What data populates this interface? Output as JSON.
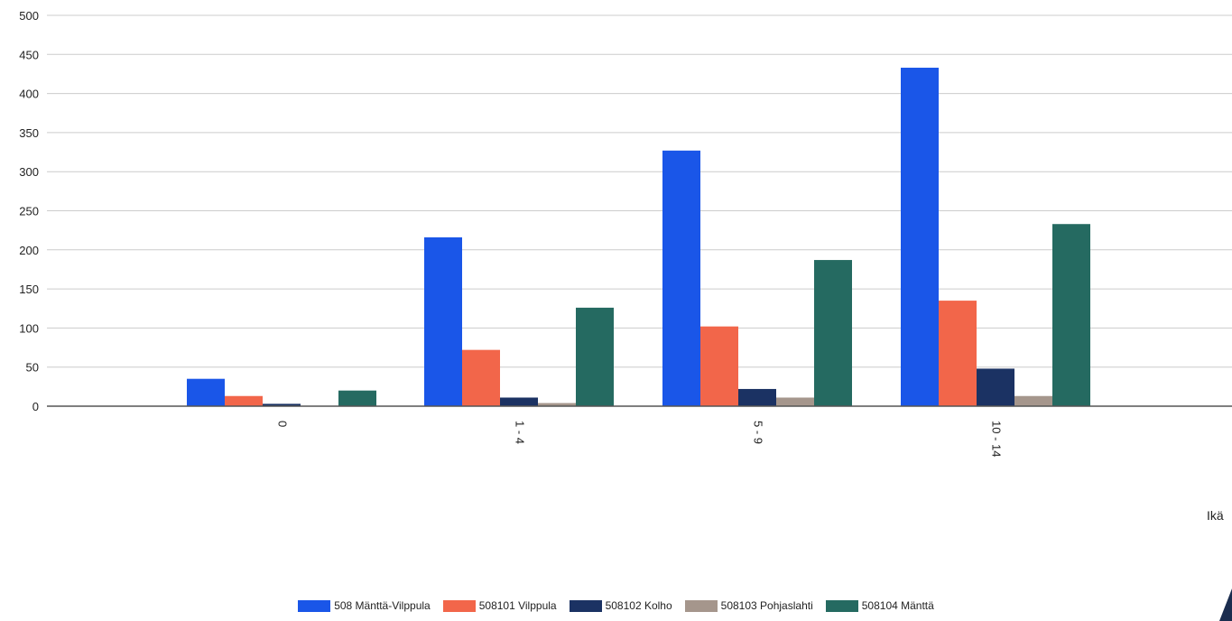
{
  "chart_data": {
    "type": "bar",
    "categories": [
      "0",
      "1 - 4",
      "5 - 9",
      "10 - 14"
    ],
    "series": [
      {
        "name": "508 Mänttä-Vilppula",
        "color": "#1a56e8",
        "values": [
          35,
          216,
          327,
          433
        ]
      },
      {
        "name": "508101 Vilppula",
        "color": "#f2664a",
        "values": [
          13,
          72,
          102,
          135
        ]
      },
      {
        "name": "508102 Kolho",
        "color": "#1b3263",
        "values": [
          3,
          11,
          22,
          48
        ]
      },
      {
        "name": "508103 Pohjaslahti",
        "color": "#a5968c",
        "values": [
          0,
          4,
          11,
          13
        ]
      },
      {
        "name": "508104 Mänttä",
        "color": "#256a61",
        "values": [
          20,
          126,
          187,
          233
        ]
      }
    ],
    "title": "",
    "xlabel": "Ikä",
    "ylabel": "",
    "ylim": [
      0,
      500
    ],
    "yticks": [
      "0",
      "50",
      "100",
      "150",
      "200",
      "250",
      "300",
      "350",
      "400",
      "450",
      "500"
    ],
    "grid": true,
    "legend_position": "bottom"
  }
}
